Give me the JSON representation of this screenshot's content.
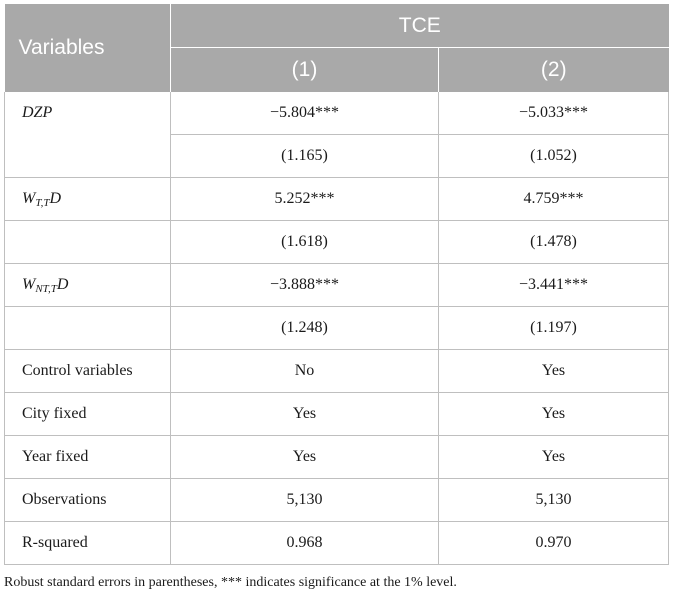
{
  "header": {
    "variables_label": "Variables",
    "group_label": "TCE",
    "col1": "(1)",
    "col2": "(2)"
  },
  "rows": [
    {
      "label": "DZP",
      "c1": "−5.804***",
      "c2": "−5.033***"
    },
    {
      "label": "",
      "c1": "(1.165)",
      "c2": "(1.052)"
    },
    {
      "label_main": "W",
      "label_sub": "T,T",
      "label_tail": "D",
      "c1": "5.252***",
      "c2": "4.759***"
    },
    {
      "label": "",
      "c1": "(1.618)",
      "c2": "(1.478)"
    },
    {
      "label_main": "W",
      "label_sub": "NT,T",
      "label_tail": "D",
      "c1": "−3.888***",
      "c2": "−3.441***"
    },
    {
      "label": "",
      "c1": "(1.248)",
      "c2": "(1.197)"
    },
    {
      "label": "Control variables",
      "c1": "No",
      "c2": "Yes"
    },
    {
      "label": "City fixed",
      "c1": "Yes",
      "c2": "Yes"
    },
    {
      "label": "Year fixed",
      "c1": "Yes",
      "c2": "Yes"
    },
    {
      "label": "Observations",
      "c1": "5,130",
      "c2": "5,130"
    },
    {
      "label": "R-squared",
      "c1": "0.968",
      "c2": "0.970"
    }
  ],
  "note": "Robust standard errors in parentheses, *** indicates significance at the 1% level."
}
